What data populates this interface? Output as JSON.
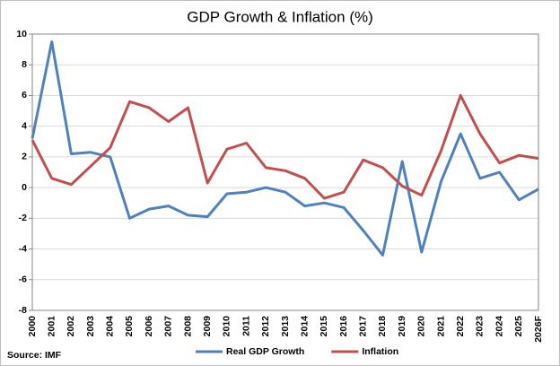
{
  "chart_data": {
    "type": "line",
    "title": "GDP Growth & Inflation (%)",
    "categories": [
      "2000",
      "2001",
      "2002",
      "2003",
      "2004",
      "2005",
      "2006",
      "2007",
      "2008",
      "2009",
      "2010",
      "2011",
      "2012",
      "2013",
      "2014",
      "2015",
      "2016",
      "2017",
      "2018",
      "2019",
      "2020",
      "2021",
      "2022",
      "2023",
      "2024",
      "2025",
      "2026F"
    ],
    "series": [
      {
        "name": "Real GDP Growth",
        "color": "#4f81bd",
        "values": [
          3.2,
          9.5,
          2.2,
          2.3,
          2.0,
          -2.0,
          -1.4,
          -1.2,
          -1.8,
          -1.9,
          -0.4,
          -0.3,
          0.0,
          -0.3,
          -1.2,
          -1.0,
          -1.3,
          -2.8,
          -4.4,
          1.7,
          -4.2,
          0.4,
          3.5,
          0.6,
          1.0,
          -0.8,
          -0.1
        ]
      },
      {
        "name": "Inflation",
        "color": "#c0504d",
        "values": [
          3.1,
          0.6,
          0.2,
          1.4,
          2.6,
          5.6,
          5.2,
          4.3,
          5.2,
          0.3,
          2.5,
          2.9,
          1.3,
          1.1,
          0.6,
          -0.7,
          -0.3,
          1.8,
          1.3,
          0.1,
          -0.5,
          2.4,
          6.0,
          3.5,
          1.6,
          2.1,
          1.9
        ]
      }
    ],
    "ylim": [
      -8,
      10
    ],
    "yticks": [
      -8,
      -6,
      -4,
      -2,
      0,
      2,
      4,
      6,
      8,
      10
    ],
    "grid": true,
    "legend": "bottom",
    "source": "Source: IMF"
  }
}
